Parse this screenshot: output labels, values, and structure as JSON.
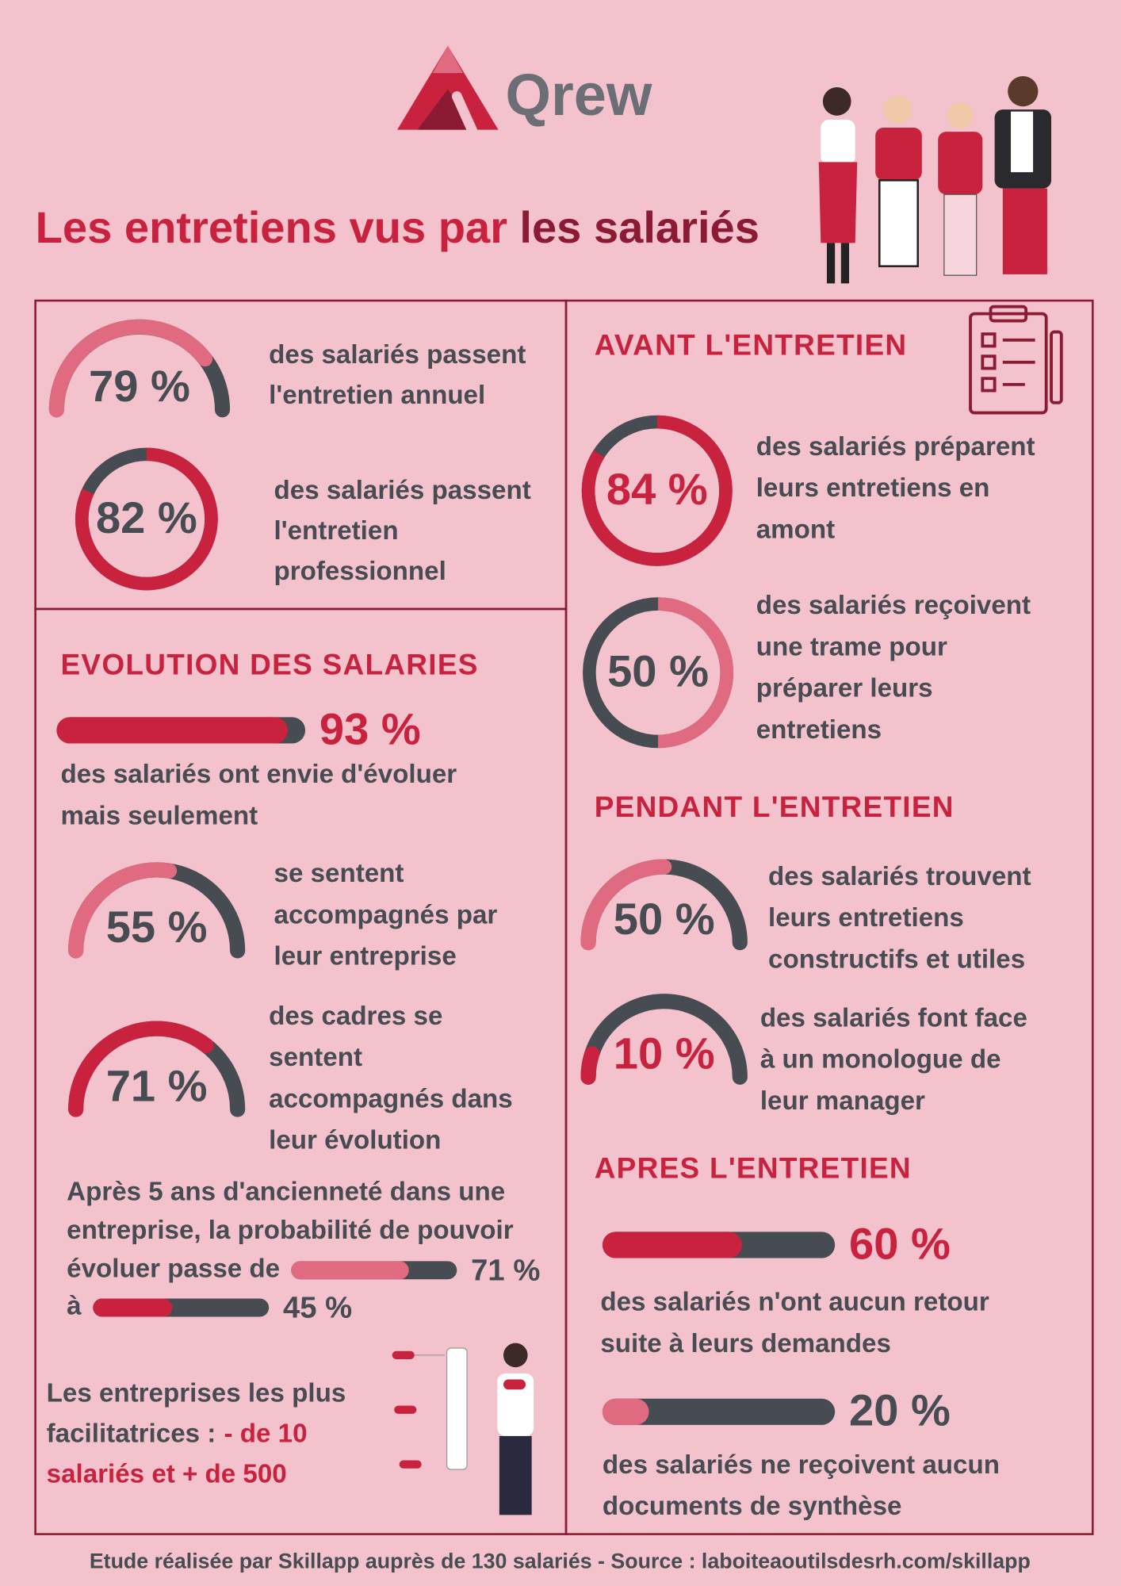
{
  "logo": "Qrew",
  "title": {
    "part1": "Les entretiens vus par",
    "part2": "les salariés"
  },
  "overview": [
    {
      "value": 79,
      "label": "79 %",
      "lines": [
        "des salariés passent",
        "l'entretien annuel"
      ]
    },
    {
      "value": 82,
      "label": "82 %",
      "lines": [
        "des salariés passent",
        "l'entretien",
        "professionnel"
      ]
    }
  ],
  "evolution": {
    "heading": "EVOLUTION DES SALARIES",
    "stats": [
      {
        "value": 93,
        "label": "93 %",
        "lines": [
          "des salariés ont envie d'évoluer",
          "mais seulement"
        ]
      },
      {
        "value": 55,
        "label": "55 %",
        "lines": [
          "se sentent",
          "accompagnés par",
          "leur entreprise"
        ]
      },
      {
        "value": 71,
        "label": "71 %",
        "lines": [
          "des cadres se",
          "sentent",
          "accompagnés dans",
          "leur évolution"
        ]
      }
    ],
    "seniority": {
      "lines": [
        "Après 5 ans d'ancienneté dans une",
        "entreprise, la probabilité de pouvoir",
        "évoluer passe de",
        "à"
      ],
      "from": {
        "value": 71,
        "label": "71 %"
      },
      "to": {
        "value": 45,
        "label": "45 %"
      }
    },
    "facilitators": {
      "lines": [
        "Les entreprises les plus",
        "facilitatrices :"
      ],
      "highlight": [
        "- de 10",
        "salariés et + de 500"
      ]
    }
  },
  "before": {
    "heading": "AVANT L'ENTRETIEN",
    "stats": [
      {
        "value": 84,
        "label": "84 %",
        "lines": [
          "des salariés préparent",
          "leurs entretiens en",
          "amont"
        ]
      },
      {
        "value": 50,
        "label": "50 %",
        "lines": [
          "des salariés reçoivent",
          "une trame pour",
          "préparer leurs",
          "entretiens"
        ]
      }
    ]
  },
  "during": {
    "heading": "PENDANT L'ENTRETIEN",
    "stats": [
      {
        "value": 50,
        "label": "50 %",
        "lines": [
          "des salariés trouvent",
          "leurs entretiens",
          "constructifs et utiles"
        ]
      },
      {
        "value": 10,
        "label": "10 %",
        "lines": [
          "des salariés font face",
          "à un monologue de",
          "leur manager"
        ]
      }
    ]
  },
  "after": {
    "heading": "APRES L'ENTRETIEN",
    "stats": [
      {
        "value": 60,
        "label": "60 %",
        "lines": [
          "des salariés n'ont aucun retour",
          "suite à leurs demandes"
        ]
      },
      {
        "value": 20,
        "label": "20 %",
        "lines": [
          "des salariés ne reçoivent aucun",
          "documents de synthèse"
        ]
      }
    ]
  },
  "footer": "Etude réalisée par Skillapp auprès de 130 salariés - Source : laboiteaoutilsdesrh.com/skillapp"
}
